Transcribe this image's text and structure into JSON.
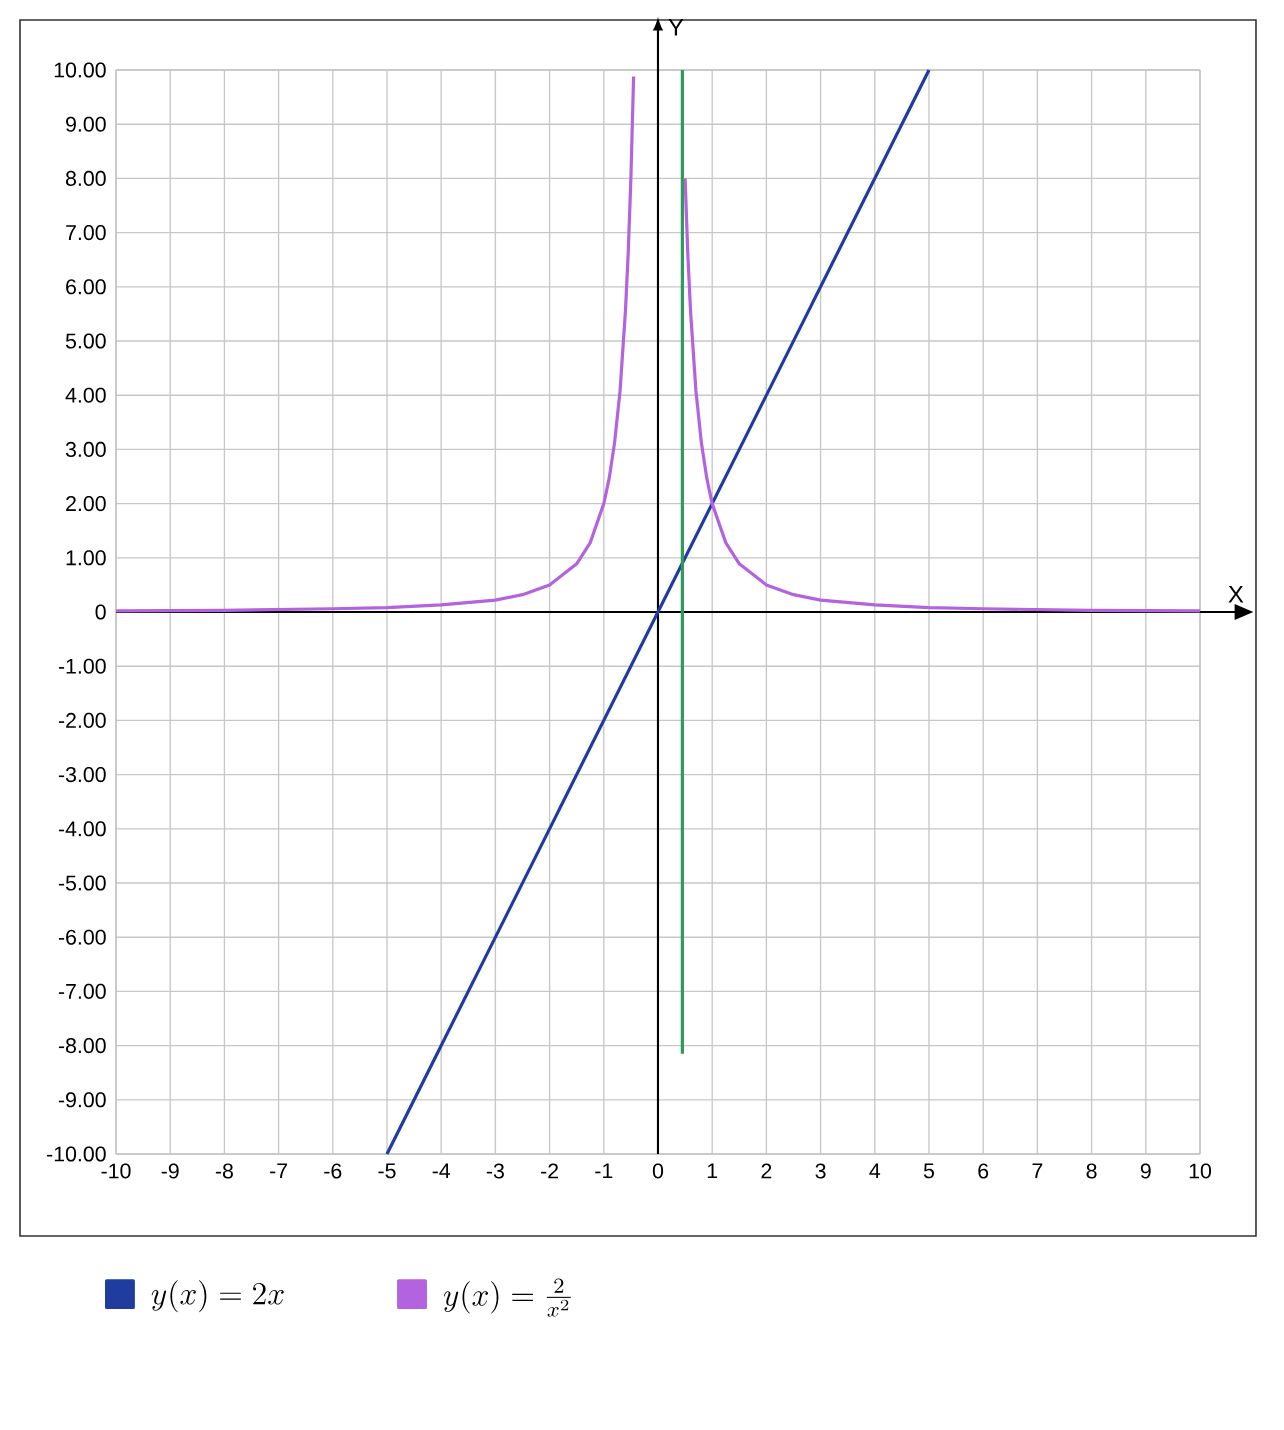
{
  "chart_data": {
    "type": "line",
    "xlabel": "X",
    "ylabel": "Y",
    "xlim": [
      -10,
      10
    ],
    "ylim": [
      -10,
      10
    ],
    "xticks": [
      -10,
      -9,
      -8,
      -7,
      -6,
      -5,
      -4,
      -3,
      -2,
      -1,
      0,
      1,
      2,
      3,
      4,
      5,
      6,
      7,
      8,
      9,
      10
    ],
    "yticks": [
      {
        "value": -10,
        "label": "-10.00"
      },
      {
        "value": -9,
        "label": "-9.00"
      },
      {
        "value": -8,
        "label": "-8.00"
      },
      {
        "value": -7,
        "label": "-7.00"
      },
      {
        "value": -6,
        "label": "-6.00"
      },
      {
        "value": -5,
        "label": "-5.00"
      },
      {
        "value": -4,
        "label": "-4.00"
      },
      {
        "value": -3,
        "label": "-3.00"
      },
      {
        "value": -2,
        "label": "-2.00"
      },
      {
        "value": -1,
        "label": "-1.00"
      },
      0,
      {
        "value": 1,
        "label": "1.00"
      },
      {
        "value": 2,
        "label": "2.00"
      },
      {
        "value": 3,
        "label": "3.00"
      },
      {
        "value": 4,
        "label": "4.00"
      },
      {
        "value": 5,
        "label": "5.00"
      },
      {
        "value": 6,
        "label": "6.00"
      },
      {
        "value": 7,
        "label": "7.00"
      },
      {
        "value": 8,
        "label": "8.00"
      },
      {
        "value": 9,
        "label": "9.00"
      },
      {
        "value": 10,
        "label": "10.00"
      }
    ],
    "grid": true,
    "legend": "bottom",
    "marker": "none",
    "line_style": "solid",
    "series": [
      {
        "name": "y(x) = 2x",
        "color": "#1f3d9e",
        "x": [
          -5,
          5
        ],
        "values": [
          -10,
          10
        ]
      },
      {
        "name": "y(x) = \\frac{2}{x^2}",
        "color": "#b362e0",
        "x": [
          -10,
          -8,
          -6,
          -5,
          -4,
          -3,
          -2.5,
          -2,
          -1.5,
          -1.25,
          -1,
          -0.9,
          -0.8,
          -0.7,
          -0.6,
          -0.55,
          -0.5,
          -0.45,
          0,
          0.45,
          0.5,
          0.55,
          0.6,
          0.7,
          0.8,
          0.9,
          1,
          1.25,
          1.5,
          2,
          2.5,
          3,
          4,
          5,
          6,
          8,
          10
        ],
        "values": [
          0.02,
          0.03,
          0.06,
          0.08,
          0.13,
          0.22,
          0.32,
          0.5,
          0.89,
          1.28,
          2,
          2.47,
          3.13,
          4.08,
          5.56,
          6.61,
          8,
          9.88,
          null,
          null,
          8,
          6.61,
          5.56,
          4.08,
          3.13,
          2.47,
          2,
          1.28,
          0.89,
          0.5,
          0.32,
          0.22,
          0.13,
          0.08,
          0.06,
          0.03,
          0.02
        ]
      },
      {
        "color": "#2e9a5c",
        "x": [
          0.45,
          0.45
        ],
        "values": [
          -8.15,
          10
        ]
      }
    ]
  }
}
